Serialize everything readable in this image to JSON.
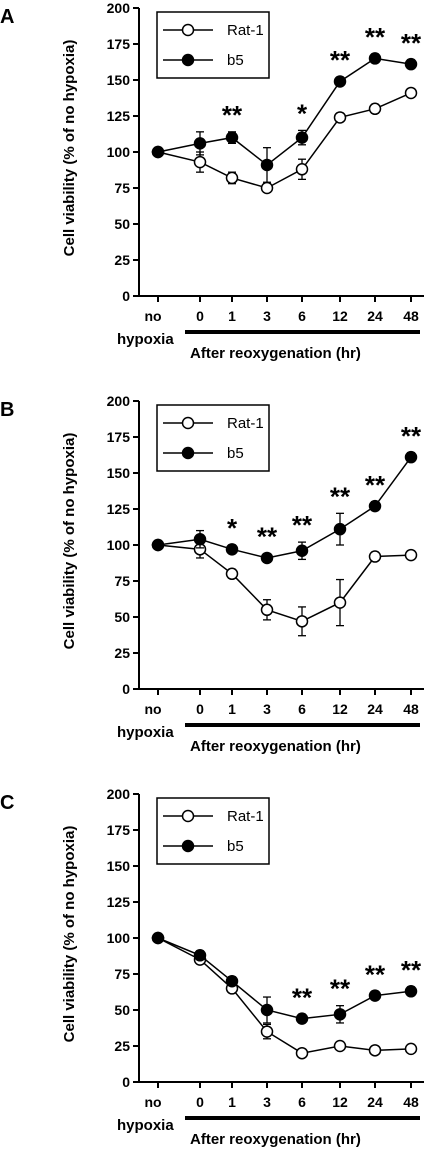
{
  "chart_data": [
    {
      "panel": "A",
      "type": "line",
      "ylabel": "Cell viability (% of no hypoxia)",
      "ylim": [
        0,
        200
      ],
      "yticks": [
        "0",
        "25",
        "50",
        "75",
        "100",
        "125",
        "150",
        "175",
        "200"
      ],
      "categories": [
        "no",
        "0",
        "1",
        "3",
        "6",
        "12",
        "24",
        "48"
      ],
      "left_label": "hypoxia",
      "bar_label": "After reoxygenation (hr)",
      "legend_position": "top-left",
      "series": [
        {
          "name": "Rat-1",
          "marker": "open-circle",
          "values": [
            100,
            93,
            82,
            75,
            88,
            124,
            130,
            141
          ],
          "errors": [
            0,
            7,
            4,
            3,
            7,
            3,
            3,
            3
          ]
        },
        {
          "name": "b5",
          "marker": "filled-circle",
          "values": [
            100,
            106,
            110,
            91,
            110,
            149,
            165,
            161
          ],
          "errors": [
            0,
            8,
            4,
            12,
            5,
            3,
            3,
            3
          ]
        }
      ],
      "significance": [
        "",
        "",
        "**",
        "",
        "*",
        "**",
        "**",
        "**"
      ]
    },
    {
      "panel": "B",
      "type": "line",
      "ylabel": "Cell viability (% of no hypoxia)",
      "ylim": [
        0,
        200
      ],
      "yticks": [
        "0",
        "25",
        "50",
        "75",
        "100",
        "125",
        "150",
        "175",
        "200"
      ],
      "categories": [
        "no",
        "0",
        "1",
        "3",
        "6",
        "12",
        "24",
        "48"
      ],
      "left_label": "hypoxia",
      "bar_label": "After reoxygenation (hr)",
      "legend_position": "top-left",
      "series": [
        {
          "name": "Rat-1",
          "marker": "open-circle",
          "values": [
            100,
            97,
            80,
            55,
            47,
            60,
            92,
            93
          ],
          "errors": [
            0,
            6,
            3,
            7,
            10,
            16,
            3,
            3
          ]
        },
        {
          "name": "b5",
          "marker": "filled-circle",
          "values": [
            100,
            104,
            97,
            91,
            96,
            111,
            127,
            161
          ],
          "errors": [
            0,
            6,
            3,
            3,
            6,
            11,
            3,
            3
          ]
        }
      ],
      "significance": [
        "",
        "",
        "*",
        "**",
        "**",
        "**",
        "**",
        "**"
      ]
    },
    {
      "panel": "C",
      "type": "line",
      "ylabel": "Cell viability (% of no hypoxia)",
      "ylim": [
        0,
        200
      ],
      "yticks": [
        "0",
        "25",
        "50",
        "75",
        "100",
        "125",
        "150",
        "175",
        "200"
      ],
      "categories": [
        "no",
        "0",
        "1",
        "3",
        "6",
        "12",
        "24",
        "48"
      ],
      "left_label": "hypoxia",
      "bar_label": "After reoxygenation (hr)",
      "legend_position": "top-left",
      "series": [
        {
          "name": "Rat-1",
          "marker": "open-circle",
          "values": [
            100,
            85,
            65,
            35,
            20,
            25,
            22,
            23
          ],
          "errors": [
            0,
            3,
            3,
            5,
            2,
            2,
            2,
            2
          ]
        },
        {
          "name": "b5",
          "marker": "filled-circle",
          "values": [
            100,
            88,
            70,
            50,
            44,
            47,
            60,
            63
          ],
          "errors": [
            0,
            3,
            3,
            9,
            3,
            6,
            3,
            3
          ]
        }
      ],
      "significance": [
        "",
        "",
        "",
        "",
        "**",
        "**",
        "**",
        "**"
      ]
    }
  ]
}
